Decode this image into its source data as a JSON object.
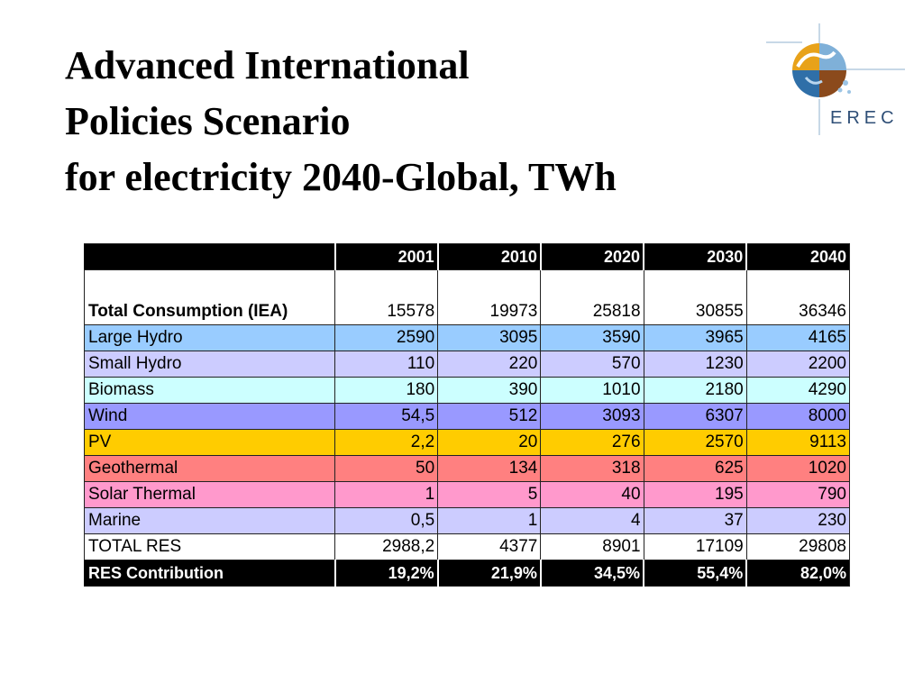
{
  "slide": {
    "title_lines": [
      "Advanced International",
      "Policies Scenario",
      "for electricity 2040-Global, TWh"
    ],
    "logo_text": "EREC"
  },
  "table": {
    "years": [
      "2001",
      "2010",
      "2020",
      "2030",
      "2040"
    ],
    "rows": [
      {
        "label": "Total Consumption (IEA)",
        "values": [
          "15578",
          "19973",
          "25818",
          "30855",
          "36346"
        ],
        "color": "#ffffff"
      },
      {
        "label": "Large Hydro",
        "values": [
          "2590",
          "3095",
          "3590",
          "3965",
          "4165"
        ],
        "color": "#99ccff"
      },
      {
        "label": "Small Hydro",
        "values": [
          "110",
          "220",
          "570",
          "1230",
          "2200"
        ],
        "color": "#ccccff"
      },
      {
        "label": "Biomass",
        "values": [
          "180",
          "390",
          "1010",
          "2180",
          "4290"
        ],
        "color": "#ccffff"
      },
      {
        "label": "Wind",
        "values": [
          "54,5",
          "512",
          "3093",
          "6307",
          "8000"
        ],
        "color": "#9999ff"
      },
      {
        "label": "PV",
        "values": [
          "2,2",
          "20",
          "276",
          "2570",
          "9113"
        ],
        "color": "#ffcc00"
      },
      {
        "label": "Geothermal",
        "values": [
          "50",
          "134",
          "318",
          "625",
          "1020"
        ],
        "color": "#ff8080"
      },
      {
        "label": "Solar Thermal",
        "values": [
          "1",
          "5",
          "40",
          "195",
          "790"
        ],
        "color": "#ff99cc"
      },
      {
        "label": "Marine",
        "values": [
          "0,5",
          "1",
          "4",
          "37",
          "230"
        ],
        "color": "#ccccff"
      },
      {
        "label": "TOTAL RES",
        "values": [
          "2988,2",
          "4377",
          "8901",
          "17109",
          "29808"
        ],
        "color": "#ffffff"
      }
    ],
    "contribution": {
      "label": "RES Contribution",
      "values": [
        "19,2%",
        "21,9%",
        "34,5%",
        "55,4%",
        "82,0%"
      ]
    }
  }
}
